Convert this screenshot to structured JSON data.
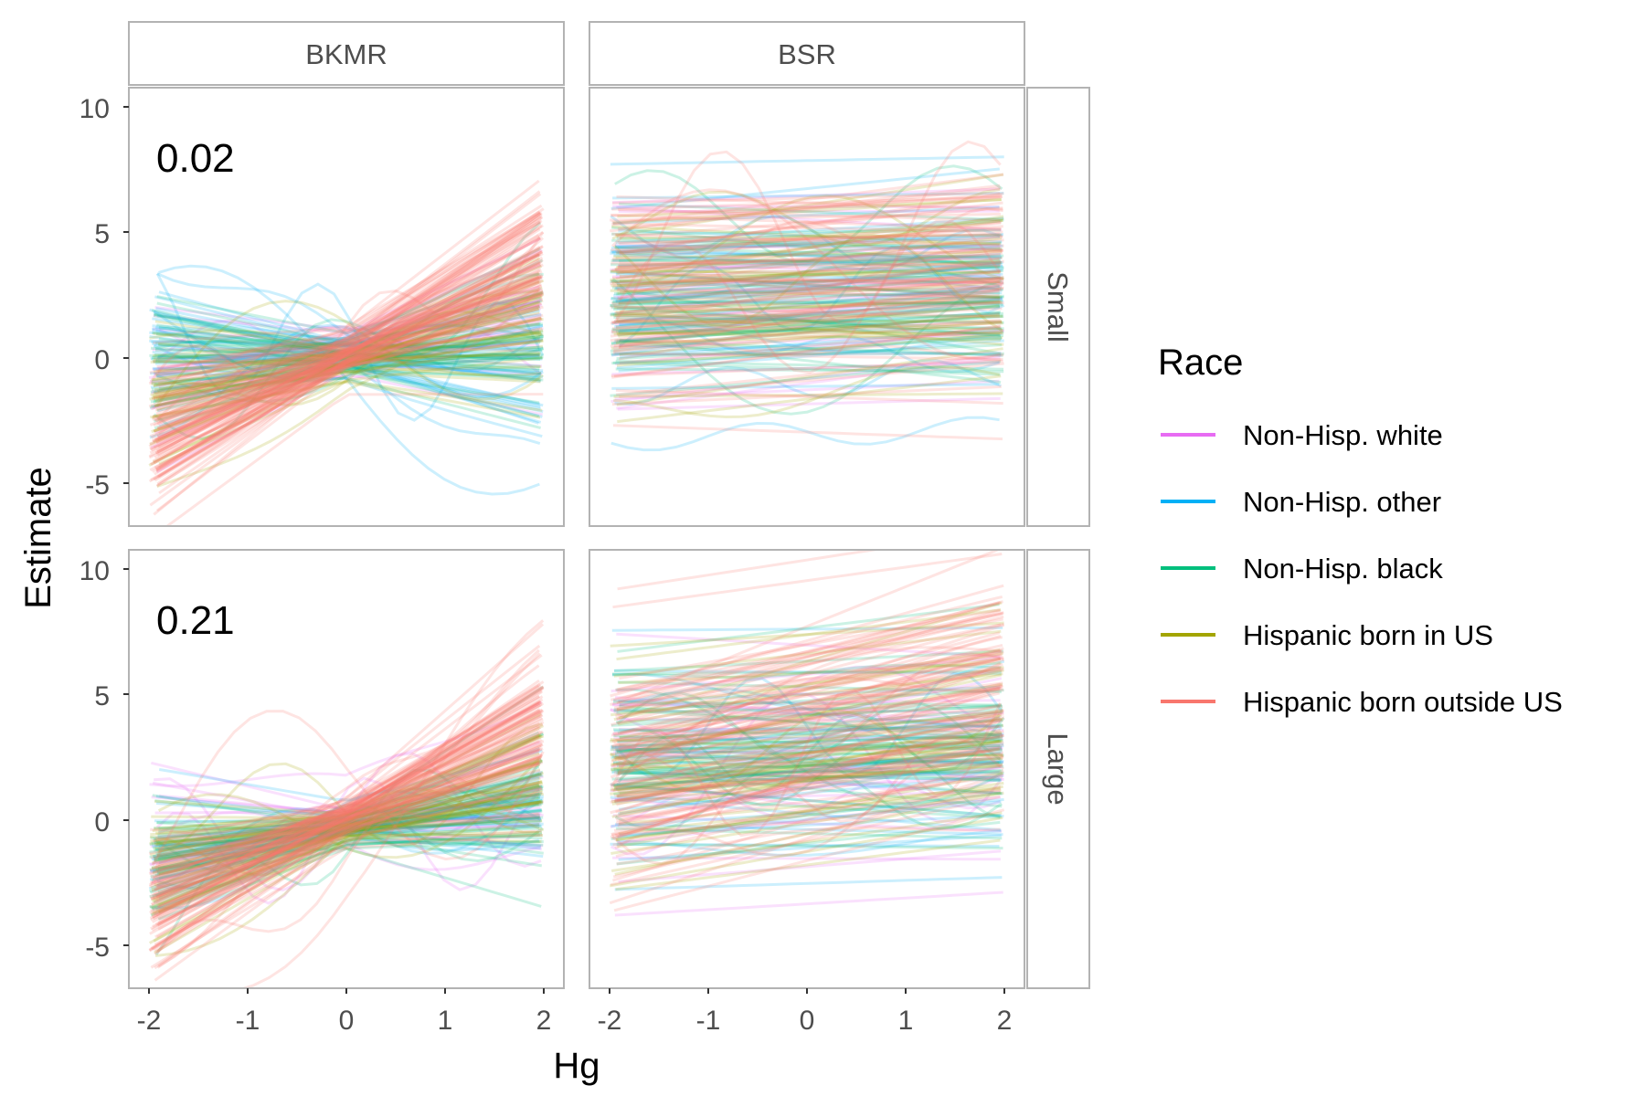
{
  "chart_data": {
    "type": "line",
    "facet_columns": [
      "BKMR",
      "BSR"
    ],
    "facet_rows": [
      "Small",
      "Large"
    ],
    "xlabel": "Hg",
    "ylabel": "Estimate",
    "x_ticks": [
      "-2",
      "-1",
      "0",
      "1",
      "2"
    ],
    "y_ticks": [
      "-5",
      "0",
      "5",
      "10"
    ],
    "xlim": [
      -2.15,
      2.15
    ],
    "ylim": [
      -6.5,
      10.5
    ],
    "panel_annotations": [
      {
        "row": "Small",
        "column": "BKMR",
        "text": "0.02"
      },
      {
        "row": "Large",
        "column": "BKMR",
        "text": "0.21"
      }
    ],
    "legend": {
      "title": "Race",
      "position": "right",
      "entries": [
        {
          "name": "Non-Hisp. white",
          "color": "#e76bf3"
        },
        {
          "name": "Non-Hisp. other",
          "color": "#00b0f6"
        },
        {
          "name": "Non-Hisp. black",
          "color": "#00bf7d"
        },
        {
          "name": "Hispanic born in US",
          "color": "#a3a500"
        },
        {
          "name": "Hispanic born outside US",
          "color": "#f8766d"
        }
      ]
    },
    "panel_trends": [
      {
        "row": "Small",
        "column": "BKMR",
        "series": [
          {
            "name": "Non-Hisp. white",
            "x": [
              -2,
              2
            ],
            "y_mean": [
              -1.0,
              1.8
            ],
            "count": 30
          },
          {
            "name": "Non-Hisp. other",
            "x": [
              -2,
              2
            ],
            "y_mean": [
              0.8,
              -0.6
            ],
            "count": 35
          },
          {
            "name": "Non-Hisp. black",
            "x": [
              -2,
              2
            ],
            "y_mean": [
              -0.8,
              0.6
            ],
            "count": 40
          },
          {
            "name": "Hispanic born in US",
            "x": [
              -2,
              2
            ],
            "y_mean": [
              -1.8,
              1.5
            ],
            "count": 45
          },
          {
            "name": "Hispanic born outside US",
            "x": [
              -2,
              2
            ],
            "y_mean": [
              -3.5,
              3.8
            ],
            "count": 90
          }
        ]
      },
      {
        "row": "Small",
        "column": "BSR",
        "series": [
          {
            "name": "Non-Hisp. white",
            "x": [
              -2,
              2
            ],
            "y_mean": [
              2.2,
              2.6
            ],
            "count": 30
          },
          {
            "name": "Non-Hisp. other",
            "x": [
              -2,
              2
            ],
            "y_mean": [
              2.8,
              3.0
            ],
            "count": 45
          },
          {
            "name": "Non-Hisp. black",
            "x": [
              -2,
              2
            ],
            "y_mean": [
              2.0,
              2.2
            ],
            "count": 50
          },
          {
            "name": "Hispanic born in US",
            "x": [
              -2,
              2
            ],
            "y_mean": [
              2.4,
              2.8
            ],
            "count": 45
          },
          {
            "name": "Hispanic born outside US",
            "x": [
              -2,
              2
            ],
            "y_mean": [
              2.2,
              3.4
            ],
            "count": 80
          }
        ]
      },
      {
        "row": "Large",
        "column": "BKMR",
        "series": [
          {
            "name": "Non-Hisp. white",
            "x": [
              -2,
              2
            ],
            "y_mean": [
              -1.0,
              1.0
            ],
            "count": 25
          },
          {
            "name": "Non-Hisp. other",
            "x": [
              -2,
              2
            ],
            "y_mean": [
              -0.8,
              0.5
            ],
            "count": 25
          },
          {
            "name": "Non-Hisp. black",
            "x": [
              -2,
              2
            ],
            "y_mean": [
              -1.5,
              0.8
            ],
            "count": 50
          },
          {
            "name": "Hispanic born in US",
            "x": [
              -2,
              2
            ],
            "y_mean": [
              -2.0,
              1.6
            ],
            "count": 45
          },
          {
            "name": "Hispanic born outside US",
            "x": [
              -2,
              2
            ],
            "y_mean": [
              -3.6,
              3.8
            ],
            "count": 90
          }
        ]
      },
      {
        "row": "Large",
        "column": "BSR",
        "series": [
          {
            "name": "Non-Hisp. white",
            "x": [
              -2,
              2
            ],
            "y_mean": [
              1.8,
              2.2
            ],
            "count": 30
          },
          {
            "name": "Non-Hisp. other",
            "x": [
              -2,
              2
            ],
            "y_mean": [
              2.5,
              2.8
            ],
            "count": 35
          },
          {
            "name": "Non-Hisp. black",
            "x": [
              -2,
              2
            ],
            "y_mean": [
              2.4,
              2.6
            ],
            "count": 50
          },
          {
            "name": "Hispanic born in US",
            "x": [
              -2,
              2
            ],
            "y_mean": [
              2.0,
              4.0
            ],
            "count": 45
          },
          {
            "name": "Hispanic born outside US",
            "x": [
              -2,
              2
            ],
            "y_mean": [
              1.8,
              5.2
            ],
            "count": 90
          }
        ]
      }
    ]
  }
}
